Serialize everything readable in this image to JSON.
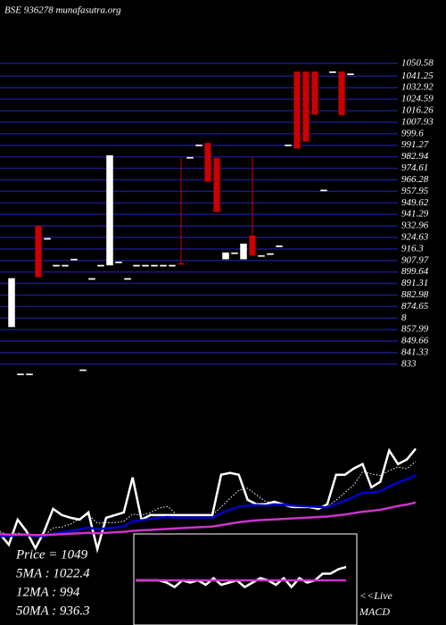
{
  "chart_data": [
    {
      "type": "candlestick",
      "title": "BSE 936278 munafasutra.org",
      "up_color": "#ffffff",
      "down_color": "#cc0000",
      "grid_color": "#1a1a80",
      "ylim": [
        820,
        1055
      ],
      "yticks": [
        1050.58,
        1041.25,
        1032.92,
        1024.59,
        1016.26,
        1007.93,
        999.6,
        991.27,
        982.94,
        974.61,
        966.28,
        957.95,
        949.62,
        941.29,
        932.96,
        924.63,
        916.3,
        907.97,
        899.64,
        891.31,
        882.98,
        874.65,
        {
          "value": 866.32,
          "label": "8"
        },
        857.99,
        849.66,
        841.33,
        833
      ],
      "open": [
        860,
        826,
        826,
        933,
        924,
        904.6,
        904.6,
        909,
        829,
        895,
        904.6,
        904.6,
        907,
        895,
        904.6,
        904.6,
        904.6,
        904.6,
        904.6,
        906,
        982.6,
        991.6,
        992.9,
        982,
        909,
        913.6,
        909,
        926,
        911.6,
        913,
        918.6,
        991.6,
        1044.5,
        1044.5,
        1044.5,
        959,
        1044.5,
        1044.5,
        1043
      ],
      "high": [
        895,
        826,
        826,
        933,
        924,
        904.6,
        904.6,
        909,
        829,
        895,
        904.6,
        983.9,
        907,
        895,
        904.6,
        904.6,
        904.6,
        904.6,
        904.6,
        982,
        982.6,
        991.6,
        992.9,
        982,
        913.6,
        913.6,
        920,
        983,
        911.6,
        913,
        918.6,
        991.6,
        1044.5,
        1044.5,
        1044.5,
        959,
        1044.5,
        1044.5,
        1043
      ],
      "low": [
        860,
        826,
        826,
        896,
        924,
        904.6,
        904.6,
        909,
        829,
        895,
        904.6,
        904.6,
        907,
        895,
        904.6,
        904.6,
        904.6,
        904.6,
        904.6,
        905,
        982.6,
        991.6,
        965,
        943,
        909,
        913.6,
        909,
        911.6,
        911.6,
        913,
        918.6,
        991.6,
        989,
        994,
        1013.5,
        959,
        1044.5,
        1013,
        1043
      ],
      "close": [
        895,
        826,
        826,
        896,
        924,
        904.6,
        904.6,
        909,
        829,
        895,
        904.6,
        983.9,
        907,
        895,
        904.6,
        904.6,
        904.6,
        904.6,
        904.6,
        905,
        982.6,
        991.6,
        965,
        943,
        913.6,
        913.6,
        920,
        911.6,
        911.6,
        913,
        918.6,
        991.6,
        989,
        994,
        1013.5,
        959,
        1044.5,
        1013,
        1043
      ]
    },
    {
      "type": "line",
      "ylim": [
        820,
        1065
      ],
      "legend": [
        "Price = 1049",
        "5MA : 1022.4",
        "12MA : 994",
        "50MA : 936.3"
      ],
      "series": [
        {
          "color": "#ffffff",
          "style": "solid",
          "values": [
            870.4,
            847.9,
            900.5,
            876,
            840.4,
            876,
            923.1,
            909.9,
            904.3,
            900.5,
            915.5,
            838.5,
            904.3,
            909.9,
            915.5,
            988.8,
            900.5,
            909.9,
            909.9,
            909.9,
            909.9,
            909.9,
            909.9,
            909.9,
            909.9,
            994.5,
            998.2,
            994.5,
            941.9,
            932.5,
            932.5,
            938.1,
            932.5,
            926.8,
            926.8,
            926.8,
            923.1,
            932.5,
            994.5,
            994.5,
            1007.6,
            1017,
            968.2,
            979.5,
            1045.2,
            1017,
            1026.4,
            1049
          ]
        },
        {
          "color": "#ffffff",
          "style": "dotted",
          "values": [
            875,
            868,
            872,
            870,
            867,
            867,
            883,
            885,
            891,
            903,
            911,
            893,
            894,
            894,
            897,
            912,
            910,
            915,
            925,
            928,
            910,
            910,
            910,
            910,
            910,
            927,
            945,
            962,
            966,
            952,
            939,
            934,
            934,
            931,
            930,
            929,
            927,
            927,
            941,
            957,
            973,
            1001,
            996,
            993,
            1003,
            1011,
            1007,
            1022.4
          ]
        },
        {
          "color": "#0000cc",
          "style": "solid",
          "values": [
            866,
            866,
            868,
            868,
            866,
            866,
            871,
            874,
            877,
            880,
            884,
            880,
            882,
            884,
            886,
            897,
            899,
            902,
            905,
            906,
            905,
            905,
            905,
            905,
            905,
            914,
            921,
            928,
            930,
            931,
            930,
            932,
            932,
            930,
            929,
            928,
            927,
            926,
            933,
            940,
            948,
            957,
            957,
            960,
            970,
            978,
            985,
            994
          ]
        },
        {
          "color": "#cc33cc",
          "style": "solid",
          "values": [
            870,
            869,
            869,
            869,
            868,
            868,
            869,
            870,
            871,
            872,
            873,
            872,
            873,
            874,
            875,
            877,
            878,
            879,
            880,
            881,
            882,
            883,
            884,
            885,
            886,
            889,
            892,
            895,
            897,
            899,
            900,
            901,
            902,
            903,
            904,
            905,
            906,
            907,
            909,
            911,
            914,
            917,
            919,
            921,
            925,
            929,
            932,
            936.3
          ]
        }
      ]
    },
    {
      "type": "line",
      "title_lines": [
        "<<Live",
        "MACD"
      ],
      "ylim": [
        -10,
        10
      ],
      "series": [
        {
          "color": "#ffffff",
          "style": "solid",
          "values": [
            0,
            0,
            0,
            0,
            -1,
            -3,
            0,
            -1,
            0,
            -2,
            1,
            -2,
            -1,
            0,
            -3,
            -1,
            1,
            0,
            -2,
            1,
            -3,
            1,
            -1,
            0,
            3,
            3,
            5,
            6
          ]
        },
        {
          "color": "#cc33cc",
          "style": "solid",
          "values": [
            0,
            0,
            0,
            0,
            0,
            0,
            0,
            0,
            0,
            0,
            0,
            0,
            0,
            0,
            0,
            0,
            0,
            0,
            0,
            0,
            0,
            0,
            0,
            0,
            0,
            0,
            0,
            0
          ]
        }
      ]
    }
  ]
}
